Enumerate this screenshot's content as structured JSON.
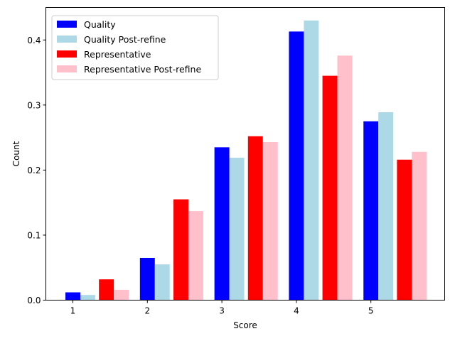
{
  "chart_data": {
    "type": "bar",
    "categories": [
      "1",
      "2",
      "3",
      "4",
      "5"
    ],
    "xlabel": "Score",
    "ylabel": "Count",
    "ylim": [
      0,
      0.45
    ],
    "yticks": [
      0.0,
      0.1,
      0.2,
      0.3,
      0.4
    ],
    "ytick_labels": [
      "0.0",
      "0.1",
      "0.2",
      "0.3",
      "0.4"
    ],
    "grid": false,
    "legend_position": "top-left",
    "series": [
      {
        "name": "Quality",
        "color": "#0000ff",
        "values": [
          0.012,
          0.065,
          0.235,
          0.413,
          0.275
        ]
      },
      {
        "name": "Quality Post-refine",
        "color": "#add8e6",
        "values": [
          0.008,
          0.055,
          0.219,
          0.43,
          0.289
        ]
      },
      {
        "name": "Representative",
        "color": "#ff0000",
        "values": [
          0.032,
          0.155,
          0.252,
          0.345,
          0.216
        ]
      },
      {
        "name": "Representative Post-refine",
        "color": "#ffc0cb",
        "values": [
          0.016,
          0.137,
          0.243,
          0.376,
          0.228
        ]
      }
    ]
  }
}
